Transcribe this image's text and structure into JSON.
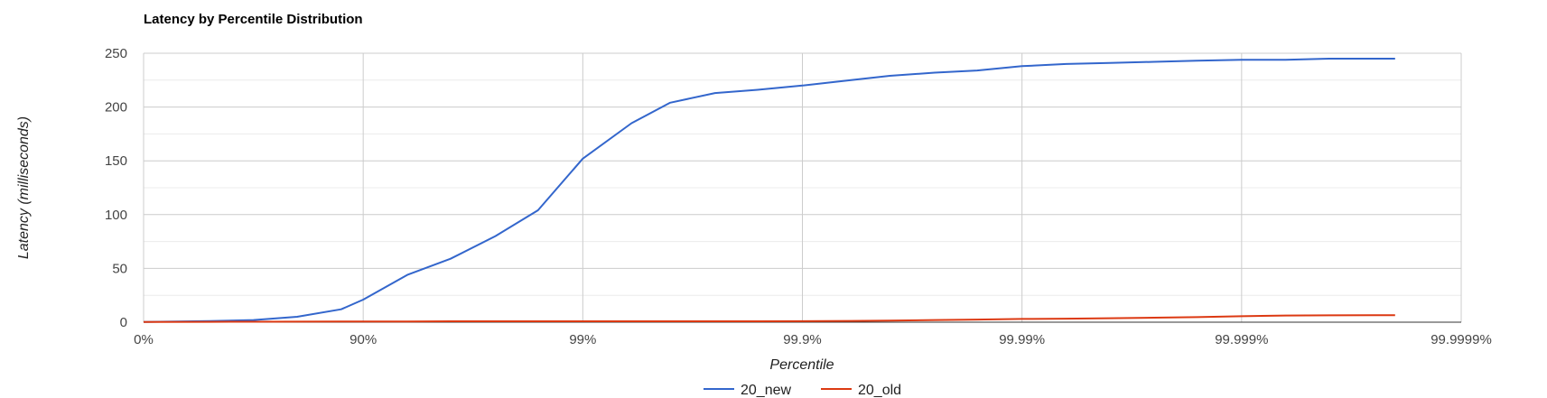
{
  "chart_data": {
    "type": "line",
    "title": "Latency by Percentile Distribution",
    "xlabel": "Percentile",
    "ylabel": "Latency (milliseconds)",
    "x_scale": "log-percentile",
    "x_ticks": [
      "0%",
      "90%",
      "99%",
      "99.9%",
      "99.99%",
      "99.999%",
      "99.9999%"
    ],
    "y_ticks": [
      "0",
      "50",
      "100",
      "150",
      "200",
      "250"
    ],
    "ylim": [
      0,
      250
    ],
    "grid": true,
    "legend_position": "bottom",
    "x": [
      "0%",
      "50%",
      "68.4%",
      "80%",
      "87.4%",
      "90%",
      "93.7%",
      "96%",
      "97.5%",
      "98.4%",
      "99%",
      "99.4%",
      "99.6%",
      "99.75%",
      "99.84%",
      "99.9%",
      "99.94%",
      "99.96%",
      "99.975%",
      "99.984%",
      "99.99%",
      "99.9937%",
      "99.996%",
      "99.9975%",
      "99.9984%",
      "99.999%",
      "99.99937%",
      "99.9996%",
      "99.99975%",
      "99.9998%"
    ],
    "series": [
      {
        "name": "20_new",
        "color": "#3366cc",
        "values": [
          0.2,
          1,
          2,
          5,
          12,
          21,
          44,
          59,
          80,
          104,
          152,
          185,
          204,
          213,
          216,
          220,
          225,
          229,
          232,
          234,
          238,
          240,
          241,
          242,
          243,
          244,
          244,
          245,
          245,
          245
        ]
      },
      {
        "name": "20_old",
        "color": "#dc3912",
        "values": [
          0.2,
          0.3,
          0.4,
          0.5,
          0.6,
          0.7,
          0.7,
          0.8,
          0.8,
          0.8,
          0.8,
          0.8,
          0.8,
          0.8,
          0.8,
          0.9,
          1.2,
          1.5,
          2,
          2.4,
          3,
          3.3,
          3.7,
          4.2,
          4.7,
          5.5,
          6.2,
          6.4,
          6.5,
          6.5
        ]
      }
    ]
  }
}
